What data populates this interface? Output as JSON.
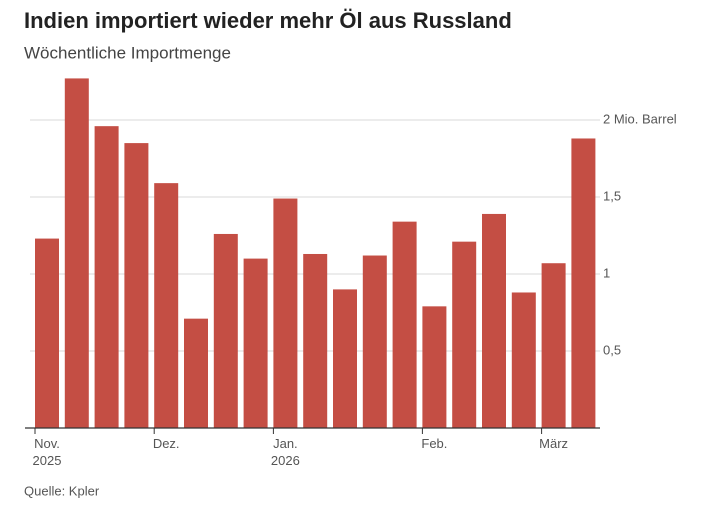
{
  "chart_data": {
    "type": "bar",
    "title": "Indien importiert wieder mehr Öl aus Russland",
    "subtitle": "Wöchentliche Importmenge",
    "source": "Quelle: Kpler",
    "categories": [
      "Nov. 2025",
      null,
      null,
      null,
      "Dez.",
      null,
      null,
      null,
      "Jan. 2026",
      null,
      null,
      null,
      null,
      "Feb.",
      null,
      null,
      null,
      "März",
      null
    ],
    "values": [
      1.23,
      2.27,
      1.96,
      1.85,
      1.59,
      0.71,
      1.26,
      1.1,
      1.49,
      1.13,
      0.9,
      1.12,
      1.34,
      0.79,
      1.21,
      1.39,
      0.88,
      1.07,
      1.88
    ],
    "color": "#c44e44",
    "ylim": [
      0,
      2.5
    ],
    "yticks": [
      {
        "value": 0.5,
        "label": "0,5"
      },
      1,
      {
        "value": 1.5,
        "label": "1,5"
      },
      {
        "value": 2,
        "label": "2 Mio. Barrel"
      }
    ],
    "grid": true
  }
}
